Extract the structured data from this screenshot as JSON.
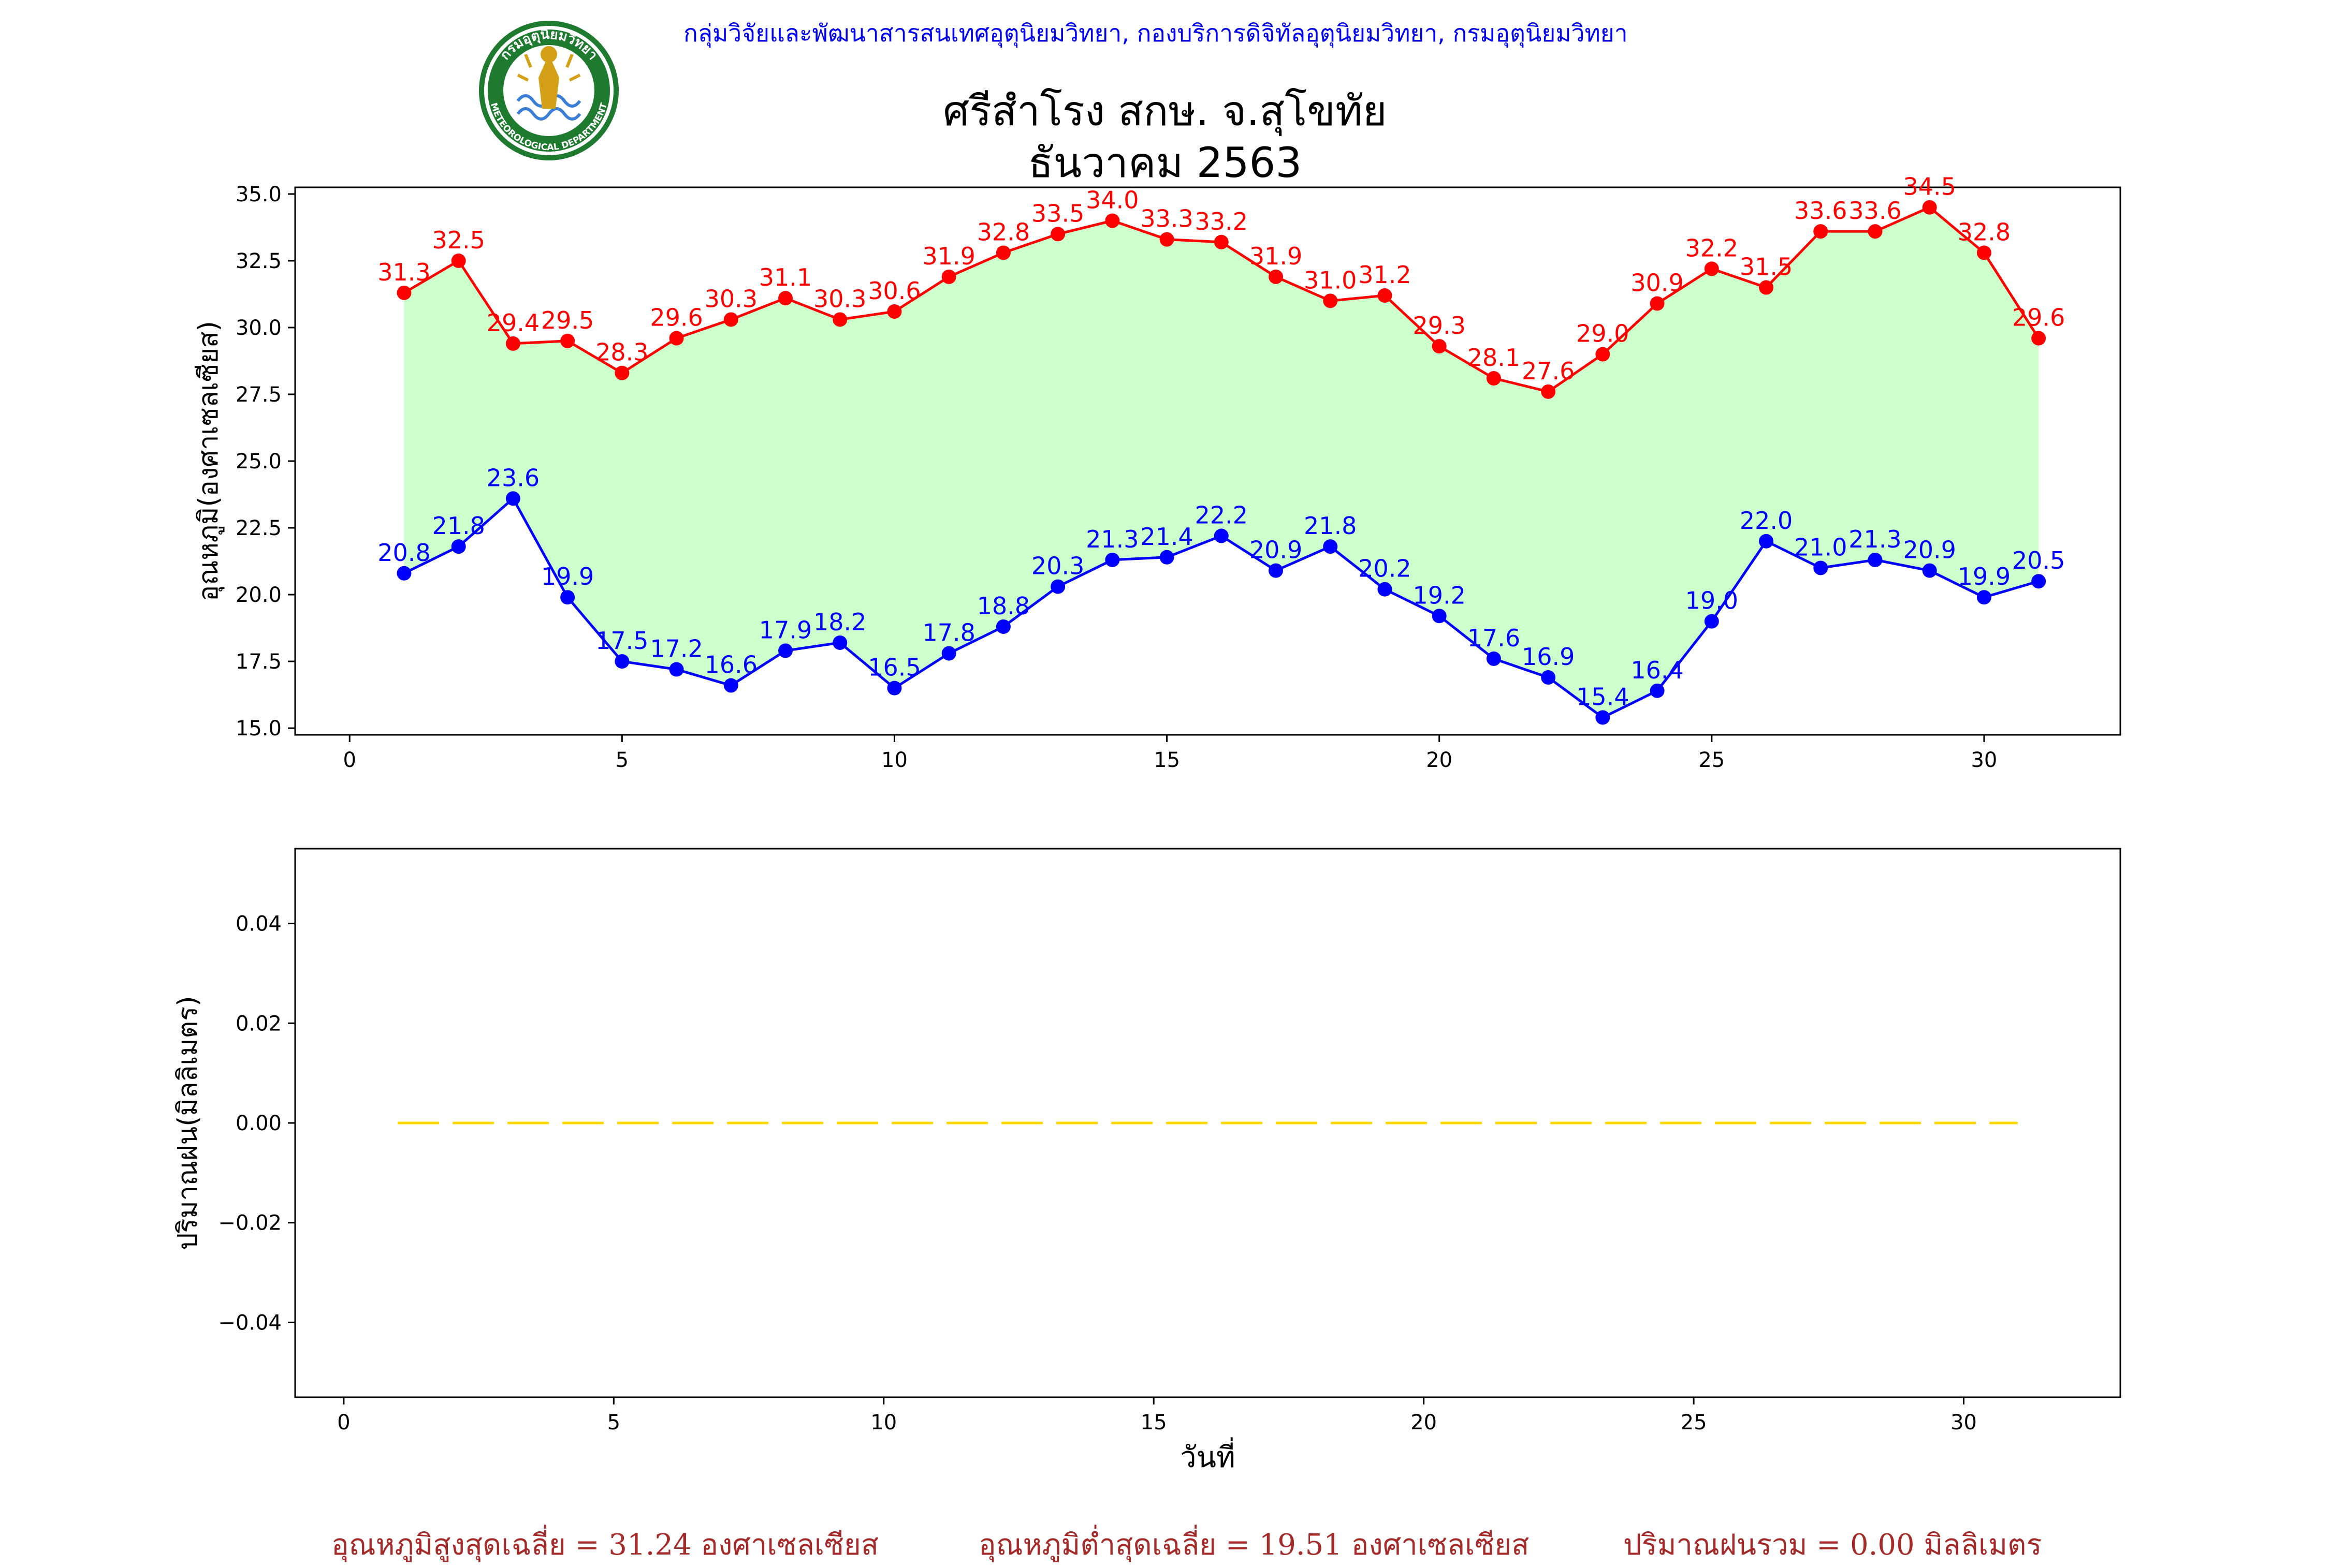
{
  "header": {
    "credit": "กลุ่มวิจัยและพัฒนาสารสนเทศอุตุนิยมวิทยา, กองบริการดิจิทัลอุตุนิยมวิทยา, กรมอุตุนิยมวิทยา",
    "logo_text_top": "กรมอุตุนิยมวิทยา",
    "logo_text_bottom": "METEOROLOGICAL DEPARTMENT"
  },
  "title_line1": "ศรีสำโรง สกษ. จ.สุโขทัย",
  "title_line2": "ธันวาคม 2563",
  "colors": {
    "max": "#ff0000",
    "min": "#0000ff",
    "fill": "#ccffcc",
    "rain": "#ffd700",
    "footer": "#a52a2a"
  },
  "chart_data": [
    {
      "type": "line",
      "ylabel": "อุณหภูมิ(องศาเซลเซียส)",
      "xlim": [
        -1,
        32.5
      ],
      "ylim": [
        14.75,
        35.25
      ],
      "xticks": [
        0,
        5,
        10,
        15,
        20,
        25,
        30
      ],
      "yticks": [
        "15.0",
        "17.5",
        "20.0",
        "22.5",
        "25.0",
        "27.5",
        "30.0",
        "32.5",
        "35.0"
      ],
      "x": [
        1,
        2,
        3,
        4,
        5,
        6,
        7,
        8,
        9,
        10,
        11,
        12,
        13,
        14,
        15,
        16,
        17,
        18,
        19,
        20,
        21,
        22,
        23,
        24,
        25,
        26,
        27,
        28,
        29,
        30,
        31
      ],
      "series": [
        {
          "values": [
            31.3,
            32.5,
            29.4,
            29.5,
            28.3,
            29.6,
            30.3,
            31.1,
            30.3,
            30.6,
            31.9,
            32.8,
            33.5,
            34.0,
            33.3,
            33.2,
            31.9,
            31.0,
            31.2,
            29.3,
            28.1,
            27.6,
            29.0,
            30.9,
            32.2,
            31.5,
            33.6,
            33.6,
            34.5,
            32.8,
            29.6
          ]
        },
        {
          "values": [
            20.8,
            21.8,
            23.6,
            19.9,
            17.5,
            17.2,
            16.6,
            17.9,
            18.2,
            16.5,
            17.8,
            18.8,
            20.3,
            21.3,
            21.4,
            22.2,
            20.9,
            21.8,
            20.2,
            19.2,
            17.6,
            16.9,
            15.4,
            16.4,
            19.0,
            22.0,
            21.0,
            21.3,
            20.9,
            19.9,
            20.5
          ]
        }
      ]
    },
    {
      "type": "line",
      "xlabel": "วันที่",
      "ylabel": "ปริมาณฝน(มิลลิเมตร)",
      "xlim": [
        -0.9,
        32.9
      ],
      "ylim": [
        -0.055,
        0.055
      ],
      "xticks": [
        0,
        5,
        10,
        15,
        20,
        25,
        30
      ],
      "yticks": [
        "−0.04",
        "−0.02",
        "0.00",
        "0.02",
        "0.04"
      ],
      "x": [
        1,
        2,
        3,
        4,
        5,
        6,
        7,
        8,
        9,
        10,
        11,
        12,
        13,
        14,
        15,
        16,
        17,
        18,
        19,
        20,
        21,
        22,
        23,
        24,
        25,
        26,
        27,
        28,
        29,
        30,
        31
      ],
      "series": [
        {
          "values": [
            0,
            0,
            0,
            0,
            0,
            0,
            0,
            0,
            0,
            0,
            0,
            0,
            0,
            0,
            0,
            0,
            0,
            0,
            0,
            0,
            0,
            0,
            0,
            0,
            0,
            0,
            0,
            0,
            0,
            0,
            0
          ]
        }
      ]
    }
  ],
  "footer": {
    "avg_max": "อุณหภูมิสูงสุดเฉลี่ย = 31.24 องศาเซลเซียส",
    "avg_min": "อุณหภูมิต่ำสุดเฉลี่ย = 19.51 องศาเซลเซียส",
    "total_rain": "ปริมาณฝนรวม = 0.00 มิลลิเมตร"
  }
}
